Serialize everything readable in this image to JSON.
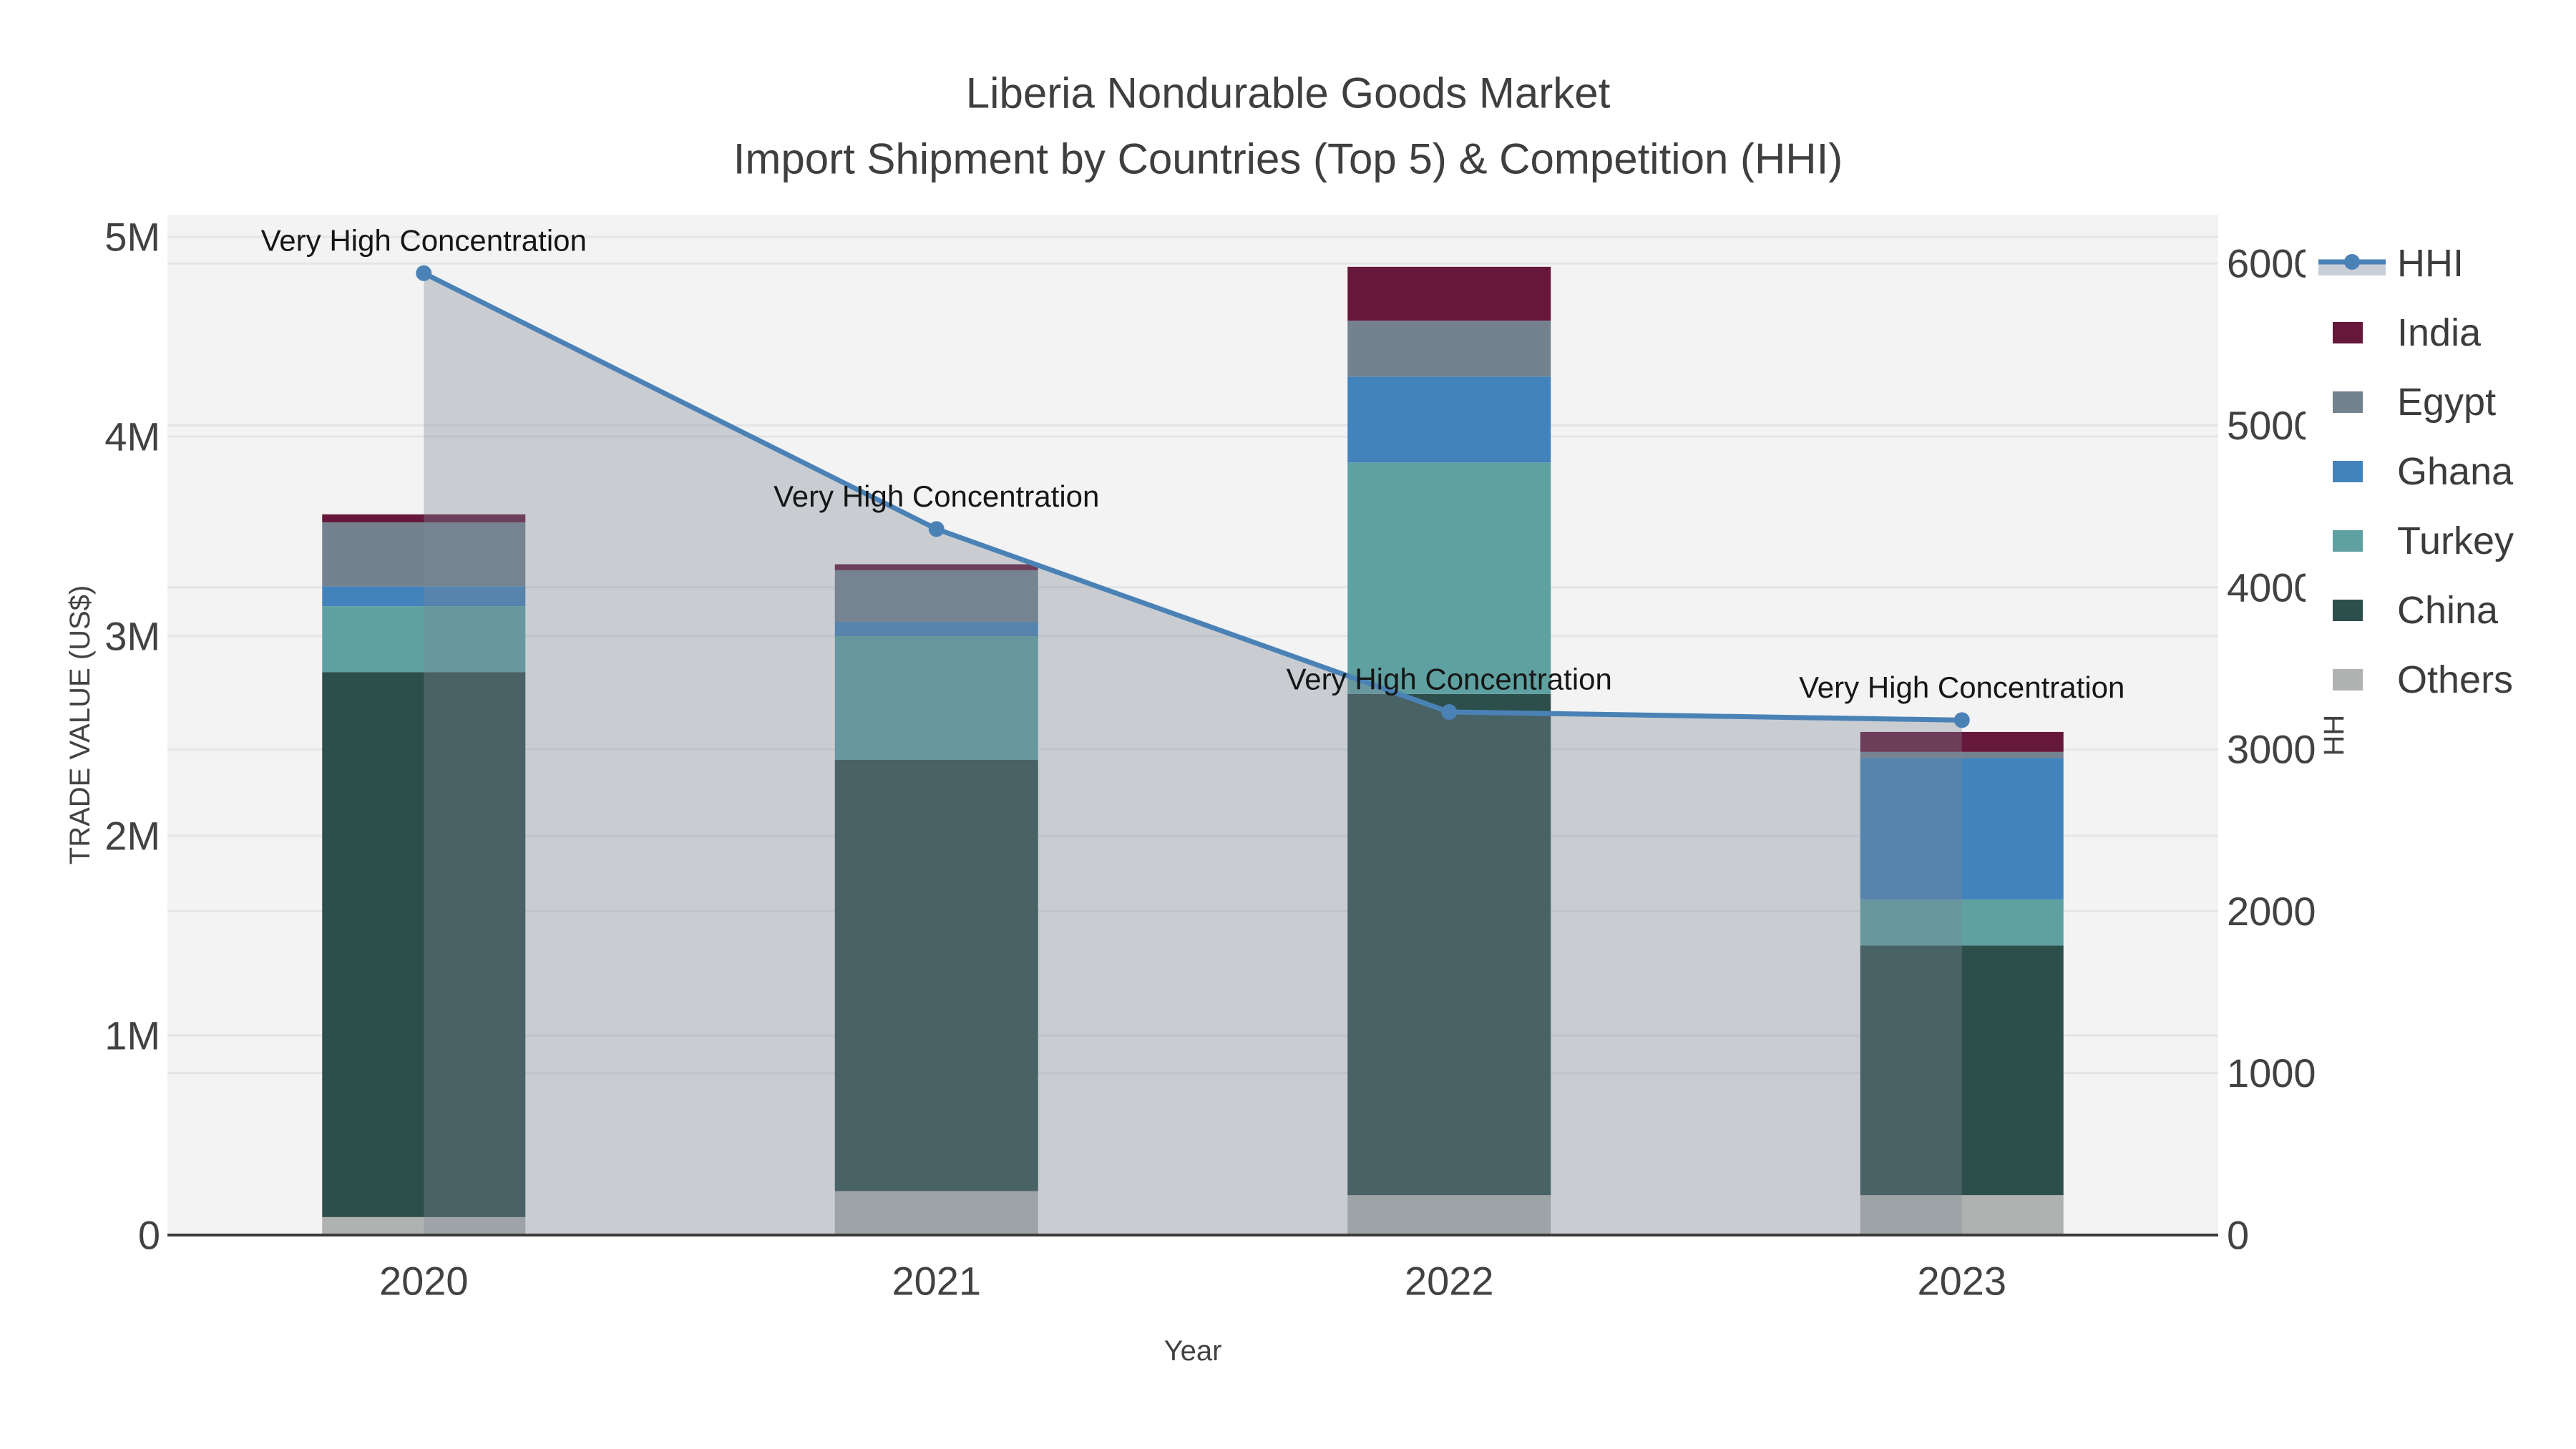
{
  "title": {
    "line1": "Liberia Nondurable Goods Market",
    "line2": "Import Shipment by Countries (Top 5) & Competition (HHI)"
  },
  "axis_titles": {
    "x": "Year",
    "y_left": "TRADE VALUE (US$)",
    "y_right": "HHI"
  },
  "colors": {
    "page_bg": "#ffffff",
    "plot_bg": "#f3f3f3",
    "grid": "#e3e5e7",
    "axis_line": "#3a3a3a",
    "tick_text": "#424242",
    "title_text": "#3f3f3f",
    "annotation_text": "#161616",
    "hhi_line": "#4b82b6",
    "hhi_fill": "rgba(122,134,150,0.35)",
    "legend_fill_band": "#c9cfd9",
    "legend_bg": "#ffffff"
  },
  "legend": {
    "entries": [
      {
        "label": "HHI",
        "type": "line",
        "color": "#4b82b6"
      },
      {
        "label": "India",
        "type": "swatch",
        "color": "#66183a"
      },
      {
        "label": "Egypt",
        "type": "swatch",
        "color": "#74828f"
      },
      {
        "label": "Ghana",
        "type": "swatch",
        "color": "#4383bb"
      },
      {
        "label": "Turkey",
        "type": "swatch",
        "color": "#5fa0a1"
      },
      {
        "label": "China",
        "type": "swatch",
        "color": "#2d4f4c"
      },
      {
        "label": "Others",
        "type": "swatch",
        "color": "#b0b2b1"
      }
    ]
  },
  "chart_data": {
    "type": "bar+line",
    "title": "Liberia Nondurable Goods Market — Import Shipment by Countries (Top 5) & Competition (HHI)",
    "categories": [
      "2020",
      "2021",
      "2022",
      "2023"
    ],
    "bar_value_unit": "M US$ (trade value, left axis)",
    "series": [
      {
        "name": "Others",
        "color": "#b0b2b1",
        "values": [
          0.09,
          0.22,
          0.2,
          0.2
        ]
      },
      {
        "name": "China",
        "color": "#2d4f4c",
        "values": [
          2.73,
          2.16,
          2.51,
          1.25
        ]
      },
      {
        "name": "Turkey",
        "color": "#5fa0a1",
        "values": [
          0.33,
          0.62,
          1.16,
          0.23
        ]
      },
      {
        "name": "Ghana",
        "color": "#4383bb",
        "values": [
          0.1,
          0.07,
          0.43,
          0.71
        ]
      },
      {
        "name": "Egypt",
        "color": "#74828f",
        "values": [
          0.32,
          0.26,
          0.28,
          0.03
        ]
      },
      {
        "name": "India",
        "color": "#66183a",
        "values": [
          0.04,
          0.03,
          0.27,
          0.1
        ]
      }
    ],
    "bar_totals": [
      3.61,
      3.36,
      4.85,
      2.52
    ],
    "line_series": {
      "name": "HHI",
      "axis": "right",
      "color": "#4b82b6",
      "values": [
        5940,
        4360,
        3230,
        3180
      ],
      "area_fill": "rgba(122,134,150,0.35)"
    },
    "annotations": [
      {
        "category": "2020",
        "text": "Very High Concentration"
      },
      {
        "category": "2021",
        "text": "Very High Concentration"
      },
      {
        "category": "2022",
        "text": "Very High Concentration"
      },
      {
        "category": "2023",
        "text": "Very High Concentration"
      }
    ],
    "xlabel": "Year",
    "ylabel_left": "TRADE VALUE (US$)",
    "ylabel_right": "HHI",
    "y_left_ticks": [
      {
        "label": "0",
        "value": 0
      },
      {
        "label": "1M",
        "value": 1
      },
      {
        "label": "2M",
        "value": 2
      },
      {
        "label": "3M",
        "value": 3
      },
      {
        "label": "4M",
        "value": 4
      },
      {
        "label": "5M",
        "value": 5
      }
    ],
    "y_right_ticks": [
      {
        "label": "0",
        "value": 0
      },
      {
        "label": "1000",
        "value": 1000
      },
      {
        "label": "2000",
        "value": 2000
      },
      {
        "label": "3000",
        "value": 3000
      },
      {
        "label": "4000",
        "value": 4000
      },
      {
        "label": "5000",
        "value": 5000
      },
      {
        "label": "6000",
        "value": 6000
      }
    ],
    "ylim_left": [
      0,
      5.11
    ],
    "ylim_right": [
      0,
      6300
    ],
    "grid": true,
    "legend_position": "right"
  }
}
